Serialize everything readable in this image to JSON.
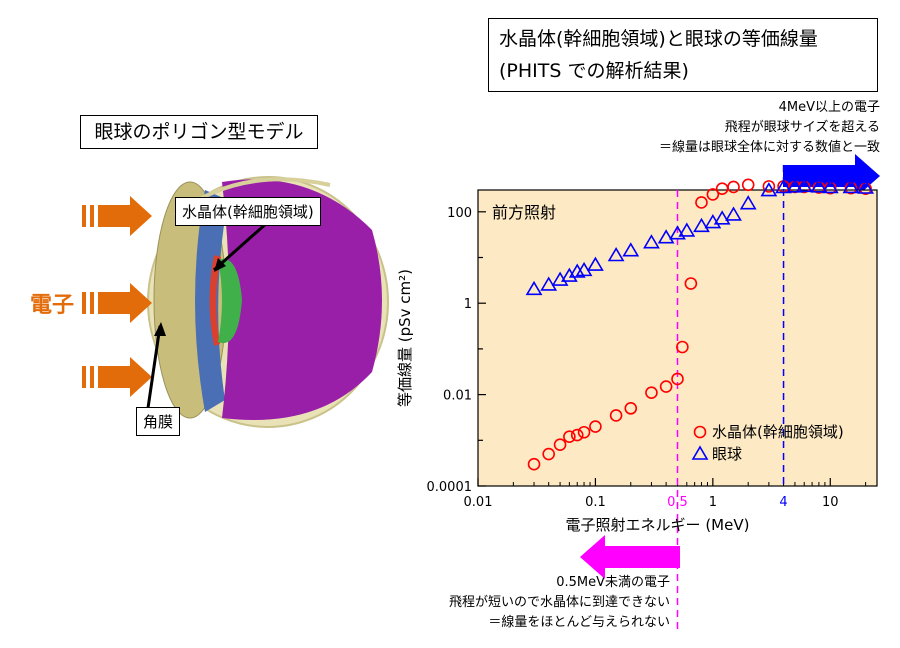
{
  "eye_panel": {
    "title": "眼球のポリゴン型モデル",
    "electron_label": "電子",
    "lens_label": "水晶体(幹細胞領域)",
    "cornea_label": "角膜"
  },
  "chart_title": {
    "line1": "水晶体(幹細胞領域)と眼球の等価線量",
    "line2": "(PHITS での解析結果)"
  },
  "notes": {
    "high": [
      "4MeV以上の電子",
      "飛程が眼球サイズを超える",
      "＝線量は眼球全体に対する数値と一致"
    ],
    "low": [
      "0.5MeV未満の電子",
      "飛程が短いので水晶体に到達できない",
      "＝線量をほとんど与えられない"
    ]
  },
  "chart_data": {
    "type": "scatter",
    "title": "",
    "inset_label": "前方照射",
    "xlabel": "電子照射エネルギー (MeV)",
    "ylabel": "等価線量 (pSv cm²)",
    "x_scale": "log",
    "y_scale": "log",
    "xlim": [
      0.01,
      25
    ],
    "ylim": [
      0.0001,
      300
    ],
    "x_ticks": [
      {
        "value": 0.01,
        "label": "0.01"
      },
      {
        "value": 0.1,
        "label": "0.1"
      },
      {
        "value": 1,
        "label": "1"
      },
      {
        "value": 10,
        "label": "10"
      }
    ],
    "y_ticks": [
      {
        "value": 0.0001,
        "label": "0.0001"
      },
      {
        "value": 0.01,
        "label": "0.01"
      },
      {
        "value": 1,
        "label": "1"
      },
      {
        "value": 100,
        "label": "100"
      }
    ],
    "vlines": [
      {
        "x": 0.5,
        "label": "0.5",
        "color": "#ff00ff"
      },
      {
        "x": 4,
        "label": "4",
        "color": "#0000ff"
      }
    ],
    "legend_position": "bottom-right",
    "background": "#fde9c3",
    "series": [
      {
        "name": "水晶体(幹細胞領域)",
        "marker": "circle",
        "color": "#ff0000",
        "x": [
          0.03,
          0.04,
          0.05,
          0.06,
          0.07,
          0.08,
          0.1,
          0.15,
          0.2,
          0.3,
          0.4,
          0.5,
          0.55,
          0.65,
          0.8,
          1.0,
          1.2,
          1.5,
          2.0,
          3.0,
          4.0,
          5.0,
          6.0,
          8.0,
          10.0,
          15.0,
          20.0
        ],
        "values": [
          0.0003,
          0.0005,
          0.0008,
          0.0012,
          0.0013,
          0.0015,
          0.002,
          0.0035,
          0.005,
          0.011,
          0.015,
          0.022,
          0.11,
          2.7,
          160,
          240,
          320,
          350,
          390,
          360,
          360,
          350,
          350,
          340,
          330,
          330,
          320
        ]
      },
      {
        "name": "眼球",
        "marker": "triangle",
        "color": "#0000ff",
        "x": [
          0.03,
          0.04,
          0.05,
          0.06,
          0.07,
          0.08,
          0.1,
          0.15,
          0.2,
          0.3,
          0.4,
          0.5,
          0.6,
          0.8,
          1.0,
          1.2,
          1.5,
          2.0,
          3.0,
          4.0,
          5.0,
          6.0,
          8.0,
          10.0,
          15.0,
          20.0
        ],
        "values": [
          2.0,
          2.5,
          3.2,
          3.9,
          4.8,
          5.2,
          6.8,
          11,
          14,
          21,
          27,
          33,
          38,
          48,
          58,
          70,
          85,
          150,
          290,
          340,
          350,
          360,
          350,
          340,
          340,
          330
        ]
      }
    ]
  }
}
